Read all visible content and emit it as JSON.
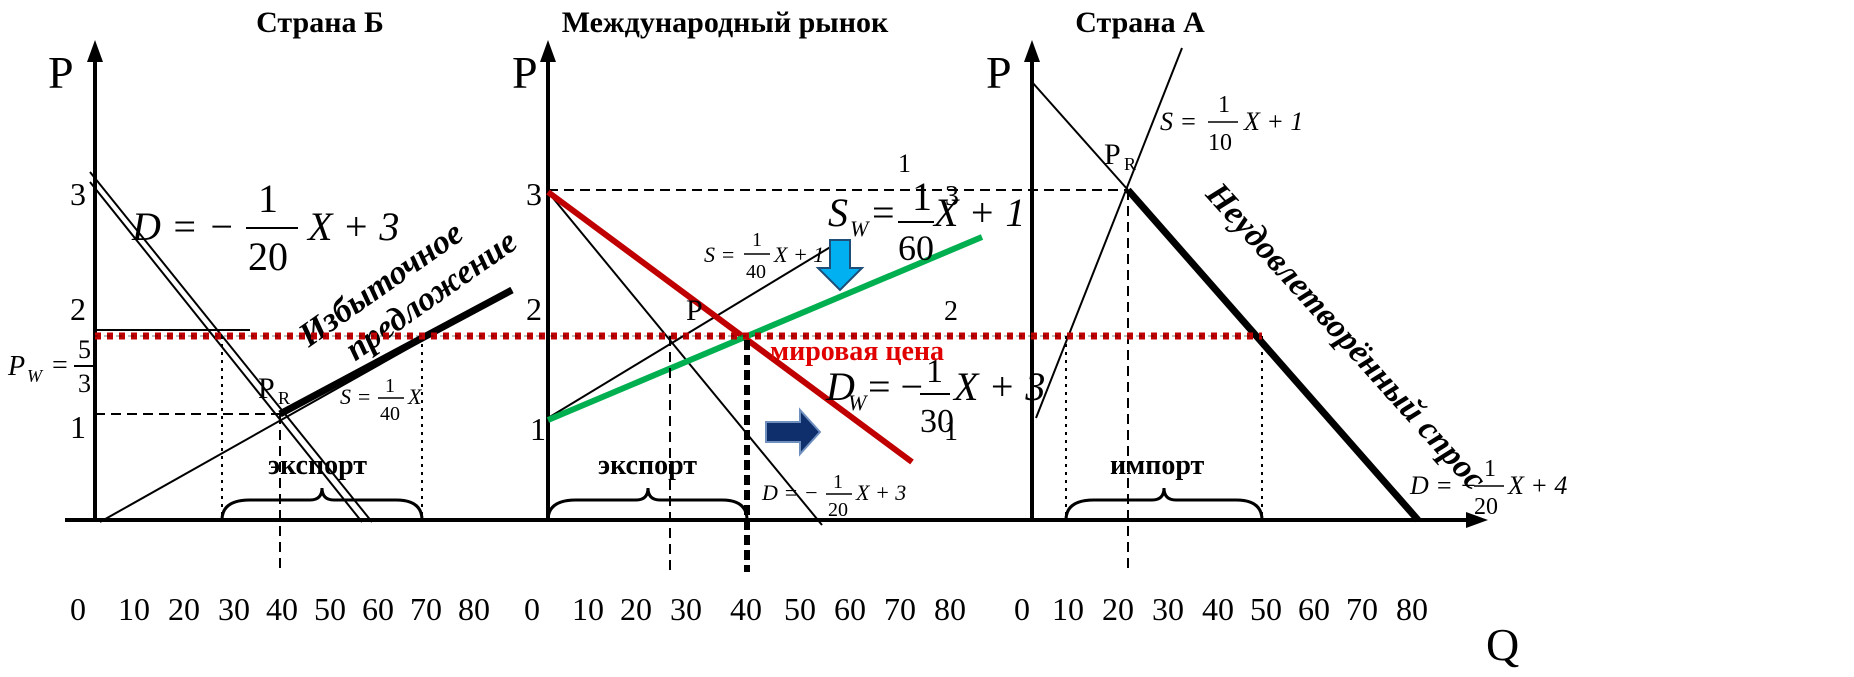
{
  "panels": {
    "country_b": {
      "title": "Страна Б",
      "p_axis": "P",
      "x_ticks": [
        "0",
        "10",
        "20",
        "30",
        "40",
        "50",
        "60",
        "70",
        "80"
      ],
      "y_ticks": [
        "3",
        "2",
        "1"
      ],
      "pw_label": "P",
      "pw_sub": "W",
      "pw_eq": "=",
      "pw_num": "5",
      "pw_den": "3",
      "pr_label": "P",
      "pr_sub": "R",
      "demand": {
        "lhs": "D = −",
        "num": "1",
        "den": "20",
        "rhs": "X + 3"
      },
      "supply": {
        "lhs": "S =",
        "num": "1",
        "den": "40",
        "rhs": "X"
      },
      "excess_supply": [
        "Избыточное",
        "предложение"
      ],
      "export_label": "экспорт"
    },
    "world": {
      "title": "Международный рынок",
      "p_axis": "P",
      "x_ticks": [
        "0",
        "10",
        "20",
        "30",
        "40",
        "50",
        "60",
        "70",
        "80"
      ],
      "y_ticks": [
        "3",
        "2",
        "1"
      ],
      "extra_ticks": {
        "top_one": "1",
        "three": "3",
        "two": "2",
        "bottom_one": "1"
      },
      "pw_label": "P",
      "sw": {
        "lhs": "S",
        "sub": "W",
        "eq": "=",
        "num": "1",
        "den": "60",
        "rhs": "X + 1"
      },
      "dw": {
        "lhs": "D",
        "sub": "W",
        "eq": "= −",
        "num": "1",
        "den": "30",
        "rhs": "X + 3"
      },
      "supply_small": {
        "lhs": "S =",
        "num": "1",
        "den": "40",
        "rhs": "X + 1"
      },
      "demand_small": {
        "lhs": "D = −",
        "num": "1",
        "den": "20",
        "rhs": "X + 3"
      },
      "world_price": "мировая цена",
      "export_label": "экспорт"
    },
    "country_a": {
      "title": "Страна А",
      "p_axis": "P",
      "q_axis": "Q",
      "x_ticks": [
        "0",
        "10",
        "20",
        "30",
        "40",
        "50",
        "60",
        "70",
        "80"
      ],
      "pr_label": "P",
      "pr_sub": "R",
      "supply": {
        "lhs": "S =",
        "num": "1",
        "den": "10",
        "rhs": "X + 1"
      },
      "demand": {
        "lhs": "D = −",
        "num": "1",
        "den": "20",
        "rhs": "X + 4"
      },
      "unmet_demand": "Неудовлетворённый спрос",
      "import_label": "импорт"
    }
  },
  "colors": {
    "world_demand": "#c00000",
    "world_supply": "#00b050",
    "world_price_text": "#e00000",
    "world_price_line": "#c00000",
    "arrow_down": "#00b0f0",
    "arrow_right": "#0e2f6b"
  }
}
